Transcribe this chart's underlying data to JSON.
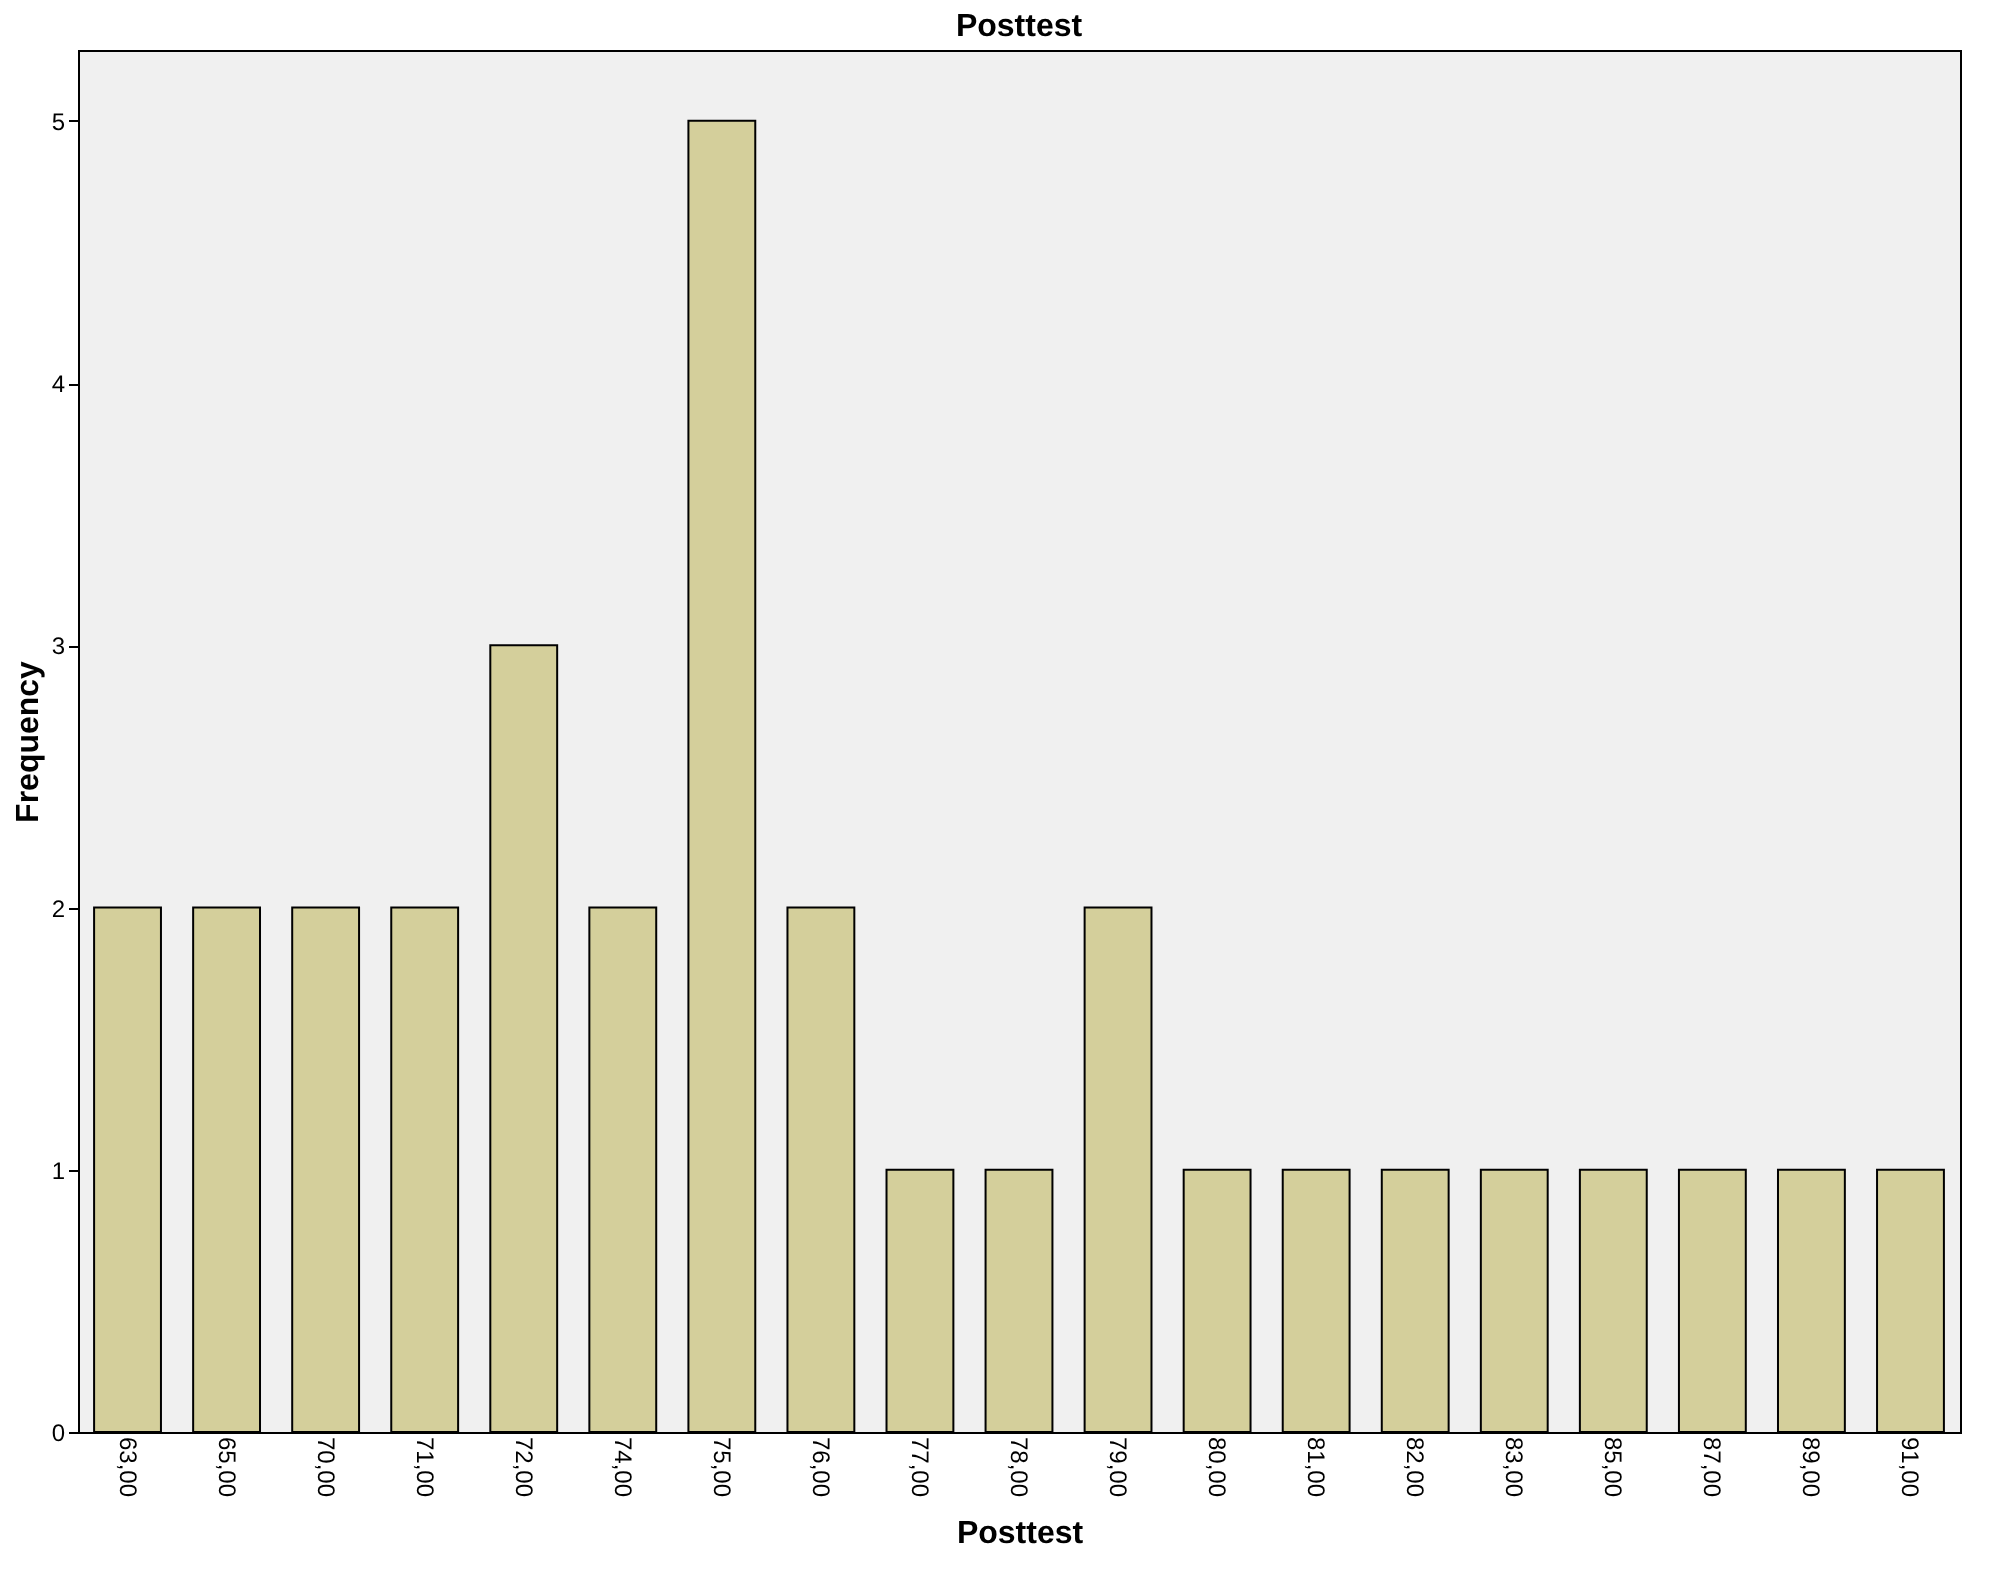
{
  "chart_data": {
    "type": "bar",
    "title": "Posttest",
    "xlabel": "Posttest",
    "ylabel": "Frequency",
    "categories": [
      "63,00",
      "65,00",
      "70,00",
      "71,00",
      "72,00",
      "74,00",
      "75,00",
      "76,00",
      "77,00",
      "78,00",
      "79,00",
      "80,00",
      "81,00",
      "82,00",
      "83,00",
      "85,00",
      "87,00",
      "89,00",
      "91,00"
    ],
    "values": [
      2,
      2,
      2,
      2,
      3,
      2,
      5,
      2,
      1,
      1,
      2,
      1,
      1,
      1,
      1,
      1,
      1,
      1,
      1
    ],
    "color": "#d4cf9b",
    "ylim": [
      0,
      5.27
    ],
    "yticks": [
      0,
      1,
      2,
      3,
      4,
      5
    ],
    "grid": false
  }
}
